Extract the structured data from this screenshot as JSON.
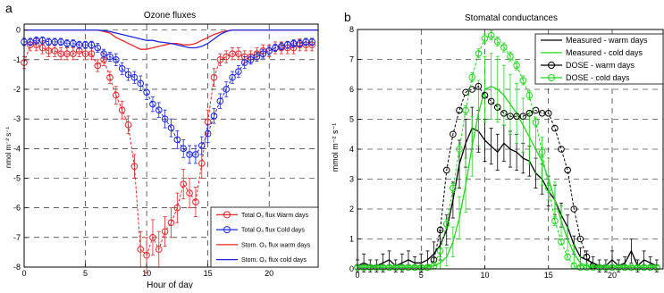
{
  "chart_data": [
    {
      "panel_letter": "a",
      "type": "line",
      "title": "Ozone fluxes",
      "xlabel": "Hour of day",
      "ylabel": "nmol m⁻² s⁻¹",
      "xlim": [
        0,
        24
      ],
      "ylim": [
        -8,
        0.2
      ],
      "xticks": [
        0,
        5,
        10,
        15,
        20
      ],
      "yticks": [
        0,
        -1,
        -2,
        -3,
        -4,
        -5,
        -6,
        -7,
        -8
      ],
      "grid": true,
      "legend_position": "bottom-right",
      "series": [
        {
          "name": "Total O₃ flux Warm days",
          "color": "#e8262b",
          "marker": "circle",
          "x": [
            0,
            0.5,
            1,
            1.5,
            2,
            2.5,
            3,
            3.5,
            4,
            4.5,
            5,
            5.5,
            6,
            6.5,
            7,
            7.5,
            8,
            8.5,
            9,
            9.5,
            10,
            10.5,
            11,
            11.5,
            12,
            12.5,
            13,
            13.5,
            14,
            14.5,
            15,
            15.5,
            16,
            16.5,
            17,
            17.5,
            18,
            18.5,
            19,
            19.5,
            20,
            20.5,
            21,
            21.5,
            22,
            22.5,
            23,
            23.5
          ],
          "y": [
            -1.1,
            -0.5,
            -0.5,
            -0.6,
            -0.7,
            -0.7,
            -0.8,
            -0.8,
            -0.8,
            -0.7,
            -0.8,
            -0.8,
            -1.2,
            -1.0,
            -1.6,
            -2.2,
            -2.7,
            -3.2,
            -4.6,
            -7.4,
            -7.6,
            -7.0,
            -7.4,
            -6.8,
            -6.5,
            -6.0,
            -5.2,
            -5.5,
            -5.8,
            -4.5,
            -3.1,
            -1.6,
            -1.0,
            -0.9,
            -0.8,
            -0.8,
            -0.9,
            -0.9,
            -0.8,
            -0.7,
            -0.7,
            -0.6,
            -0.6,
            -0.6,
            -0.6,
            -0.5,
            -0.5,
            -0.5
          ],
          "err": [
            0.2,
            0.2,
            0.2,
            0.2,
            0.2,
            0.2,
            0.2,
            0.2,
            0.2,
            0.2,
            0.2,
            0.2,
            0.2,
            0.2,
            0.2,
            0.3,
            0.3,
            0.3,
            0.4,
            0.6,
            0.6,
            0.6,
            0.6,
            0.5,
            0.5,
            0.5,
            0.5,
            0.5,
            0.5,
            0.5,
            0.4,
            0.3,
            0.2,
            0.2,
            0.2,
            0.2,
            0.2,
            0.2,
            0.2,
            0.2,
            0.2,
            0.2,
            0.2,
            0.2,
            0.2,
            0.2,
            0.2,
            0.2
          ]
        },
        {
          "name": "Total O₃ flux Cold days",
          "color": "#1a26e0",
          "marker": "circle",
          "x": [
            0,
            0.5,
            1,
            1.5,
            2,
            2.5,
            3,
            3.5,
            4,
            4.5,
            5,
            5.5,
            6,
            6.5,
            7,
            7.5,
            8,
            8.5,
            9,
            9.5,
            10,
            10.5,
            11,
            11.5,
            12,
            12.5,
            13,
            13.5,
            14,
            14.5,
            15,
            15.5,
            16,
            16.5,
            17,
            17.5,
            18,
            18.5,
            19,
            19.5,
            20,
            20.5,
            21,
            21.5,
            22,
            22.5,
            23,
            23.5
          ],
          "y": [
            -0.4,
            -0.4,
            -0.35,
            -0.35,
            -0.4,
            -0.4,
            -0.4,
            -0.45,
            -0.45,
            -0.5,
            -0.5,
            -0.5,
            -0.6,
            -0.8,
            -0.9,
            -1.0,
            -1.3,
            -1.5,
            -1.6,
            -1.8,
            -2.1,
            -2.5,
            -2.7,
            -3.0,
            -3.3,
            -3.7,
            -4.0,
            -4.2,
            -4.2,
            -3.9,
            -3.5,
            -2.9,
            -2.4,
            -2.0,
            -1.6,
            -1.4,
            -1.1,
            -1.0,
            -0.9,
            -0.8,
            -0.7,
            -0.6,
            -0.55,
            -0.5,
            -0.45,
            -0.45,
            -0.4,
            -0.4
          ],
          "err": [
            0.12,
            0.12,
            0.12,
            0.12,
            0.12,
            0.12,
            0.12,
            0.12,
            0.12,
            0.12,
            0.12,
            0.12,
            0.15,
            0.15,
            0.15,
            0.2,
            0.2,
            0.2,
            0.2,
            0.25,
            0.25,
            0.25,
            0.25,
            0.3,
            0.3,
            0.3,
            0.3,
            0.3,
            0.3,
            0.3,
            0.3,
            0.25,
            0.25,
            0.25,
            0.2,
            0.2,
            0.2,
            0.15,
            0.15,
            0.15,
            0.15,
            0.12,
            0.12,
            0.12,
            0.12,
            0.12,
            0.12,
            0.12
          ]
        },
        {
          "name": "Stom. O₃ flux warm days",
          "color": "#e8262b",
          "marker": "none",
          "x": [
            0,
            1,
            2,
            3,
            4,
            5,
            6,
            6.5,
            7,
            7.5,
            8,
            8.5,
            9,
            9.5,
            10,
            10.5,
            11,
            11.5,
            12,
            12.5,
            13,
            13.5,
            14,
            14.5,
            15,
            15.5,
            16,
            16.5,
            17,
            18,
            19,
            20,
            21,
            22,
            23,
            24
          ],
          "y": [
            0,
            0,
            0,
            0,
            0,
            0,
            0,
            -0.05,
            -0.1,
            -0.25,
            -0.35,
            -0.45,
            -0.55,
            -0.65,
            -0.65,
            -0.6,
            -0.55,
            -0.5,
            -0.45,
            -0.45,
            -0.5,
            -0.5,
            -0.45,
            -0.35,
            -0.25,
            -0.15,
            -0.08,
            -0.03,
            0,
            0,
            0,
            0,
            0,
            0,
            0,
            0
          ]
        },
        {
          "name": "Stom. O₃ flux cold days",
          "color": "#1a26e0",
          "marker": "none",
          "x": [
            0,
            1,
            2,
            3,
            4,
            5,
            6,
            6.5,
            7,
            7.5,
            8,
            8.5,
            9,
            9.5,
            10,
            10.5,
            11,
            11.5,
            12,
            12.5,
            13,
            13.5,
            14,
            14.5,
            15,
            15.5,
            16,
            16.5,
            17,
            18,
            19,
            20,
            21,
            22,
            23,
            24
          ],
          "y": [
            0,
            0,
            0,
            0,
            0,
            0,
            0,
            -0.02,
            -0.05,
            -0.1,
            -0.15,
            -0.2,
            -0.25,
            -0.3,
            -0.35,
            -0.35,
            -0.4,
            -0.42,
            -0.45,
            -0.5,
            -0.55,
            -0.6,
            -0.6,
            -0.55,
            -0.45,
            -0.3,
            -0.15,
            -0.05,
            0,
            0,
            0,
            0,
            0,
            0,
            0,
            0
          ]
        }
      ]
    },
    {
      "panel_letter": "b",
      "type": "line",
      "title": "Stomatal conductances",
      "xlabel": "",
      "ylabel": "mmol m⁻² s⁻¹",
      "xlim": [
        0,
        24
      ],
      "ylim": [
        0,
        8
      ],
      "xticks": [
        0,
        5,
        10,
        15,
        20
      ],
      "yticks": [
        0,
        1,
        2,
        3,
        4,
        5,
        6,
        7,
        8
      ],
      "grid": true,
      "legend_position": "top-right",
      "series": [
        {
          "name": "Measured - warm days",
          "color": "#000000",
          "marker": "none",
          "x": [
            0,
            0.5,
            1,
            1.5,
            2,
            2.5,
            3,
            3.5,
            4,
            4.5,
            5,
            5.5,
            6,
            6.5,
            7,
            7.5,
            8,
            8.5,
            9,
            9.5,
            10,
            10.5,
            11,
            11.5,
            12,
            12.5,
            13,
            13.5,
            14,
            14.5,
            15,
            15.5,
            16,
            16.5,
            17,
            17.5,
            18,
            18.5,
            19,
            19.5,
            20,
            20.5,
            21,
            21.5,
            22,
            22.5,
            23,
            23.5
          ],
          "y": [
            0.1,
            0.2,
            0.1,
            0.1,
            0.2,
            0.3,
            0.1,
            0.2,
            0.3,
            0.2,
            0.2,
            0.3,
            0.5,
            0.8,
            1.3,
            2.3,
            3.5,
            4.2,
            4.7,
            4.6,
            4.3,
            4.1,
            3.9,
            4.2,
            4.0,
            3.9,
            3.7,
            3.6,
            3.2,
            3.0,
            2.6,
            2.3,
            1.8,
            1.4,
            0.8,
            0.4,
            0.3,
            0.2,
            0.1,
            0.1,
            0.3,
            0.1,
            0.2,
            0.6,
            0.1,
            0.3,
            0.2,
            0.1
          ],
          "err": [
            0.2,
            0.3,
            0.2,
            0.2,
            0.3,
            0.3,
            0.2,
            0.3,
            0.3,
            0.2,
            0.3,
            0.3,
            0.4,
            0.5,
            0.5,
            0.6,
            0.8,
            0.8,
            0.7,
            0.7,
            0.7,
            0.6,
            0.6,
            0.6,
            0.6,
            0.6,
            0.5,
            0.5,
            0.5,
            0.5,
            0.5,
            0.5,
            0.4,
            0.4,
            0.3,
            0.3,
            0.3,
            0.2,
            0.2,
            0.2,
            0.3,
            0.2,
            0.2,
            0.4,
            0.2,
            0.3,
            0.2,
            0.2
          ]
        },
        {
          "name": "Measured - cold days",
          "color": "#22d81e",
          "marker": "none",
          "x": [
            0,
            0.5,
            1,
            1.5,
            2,
            2.5,
            3,
            3.5,
            4,
            4.5,
            5,
            5.5,
            6,
            6.5,
            7,
            7.5,
            8,
            8.5,
            9,
            9.5,
            10,
            10.5,
            11,
            11.5,
            12,
            12.5,
            13,
            13.5,
            14,
            14.5,
            15,
            15.5,
            16,
            16.5,
            17,
            17.5,
            18,
            18.5,
            19,
            19.5,
            20,
            20.5,
            21,
            21.5,
            22,
            22.5,
            23,
            23.5
          ],
          "y": [
            0.05,
            0.05,
            0.05,
            0.05,
            0.05,
            0.05,
            0.05,
            0.05,
            0.05,
            0.05,
            0.05,
            0.05,
            0.1,
            0.2,
            0.4,
            0.9,
            1.7,
            2.8,
            4.1,
            5.2,
            6.0,
            6.1,
            6.0,
            5.8,
            5.5,
            5.2,
            4.8,
            4.4,
            4.0,
            3.6,
            3.0,
            2.3,
            1.6,
            1.0,
            0.5,
            0.2,
            0.1,
            0.05,
            0.05,
            0.05,
            0.05,
            0.05,
            0.05,
            0.05,
            0.05,
            0.05,
            0.05,
            0.05
          ],
          "err": [
            0.05,
            0.05,
            0.05,
            0.05,
            0.05,
            0.05,
            0.05,
            0.05,
            0.05,
            0.05,
            0.05,
            0.05,
            0.1,
            0.2,
            0.3,
            0.5,
            0.7,
            0.9,
            1.0,
            1.1,
            1.1,
            1.1,
            1.1,
            1.0,
            1.0,
            1.0,
            0.9,
            0.9,
            0.8,
            0.8,
            0.7,
            0.6,
            0.5,
            0.4,
            0.3,
            0.2,
            0.1,
            0.05,
            0.05,
            0.05,
            0.05,
            0.05,
            0.05,
            0.05,
            0.05,
            0.05,
            0.05,
            0.05
          ]
        },
        {
          "name": "DOSE - warm days",
          "color": "#000000",
          "marker": "circle",
          "x": [
            0,
            0.5,
            1,
            1.5,
            2,
            2.5,
            3,
            3.5,
            4,
            4.5,
            5,
            5.5,
            6,
            6.5,
            7,
            7.5,
            8,
            8.5,
            9,
            9.5,
            10,
            10.5,
            11,
            11.5,
            12,
            12.5,
            13,
            13.5,
            14,
            14.5,
            15,
            15.5,
            16,
            16.5,
            17,
            17.5,
            18,
            18.5,
            19,
            19.5,
            20,
            20.5,
            21,
            21.5,
            22,
            22.5,
            23,
            23.5
          ],
          "y": [
            0.05,
            0.05,
            0.05,
            0.05,
            0.05,
            0.05,
            0.05,
            0.05,
            0.05,
            0.05,
            0.05,
            0.05,
            0.3,
            1.3,
            3.3,
            4.5,
            5.3,
            5.9,
            6.0,
            6.1,
            5.8,
            5.6,
            5.4,
            5.2,
            5.1,
            5.1,
            5.1,
            5.2,
            5.3,
            5.2,
            5.2,
            4.7,
            4.0,
            3.3,
            2.0,
            1.0,
            0.4,
            0.1,
            0.05,
            0.05,
            0.05,
            0.05,
            0.05,
            0.05,
            0.05,
            0.05,
            0.05,
            0.05
          ]
        },
        {
          "name": "DOSE - cold days",
          "color": "#22d81e",
          "marker": "circle",
          "x": [
            0,
            0.5,
            1,
            1.5,
            2,
            2.5,
            3,
            3.5,
            4,
            4.5,
            5,
            5.5,
            6,
            6.5,
            7,
            7.5,
            8,
            8.5,
            9,
            9.5,
            10,
            10.5,
            11,
            11.5,
            12,
            12.5,
            13,
            13.5,
            14,
            14.5,
            15,
            15.5,
            16,
            16.5,
            17,
            17.5,
            18,
            18.5,
            19,
            19.5,
            20,
            20.5,
            21,
            21.5,
            22,
            22.5,
            23,
            23.5
          ],
          "y": [
            0.05,
            0.05,
            0.05,
            0.05,
            0.05,
            0.05,
            0.05,
            0.05,
            0.05,
            0.05,
            0.05,
            0.05,
            0.1,
            0.6,
            1.5,
            2.7,
            4.0,
            5.3,
            6.4,
            7.2,
            7.7,
            7.8,
            7.6,
            7.4,
            7.1,
            6.8,
            6.3,
            5.8,
            4.9,
            3.9,
            2.7,
            1.6,
            0.9,
            0.4,
            0.1,
            0.05,
            0.05,
            0.05,
            0.05,
            0.05,
            0.05,
            0.05,
            0.05,
            0.05,
            0.05,
            0.05,
            0.05,
            0.05
          ],
          "err": [
            0.05,
            0.05,
            0.05,
            0.05,
            0.05,
            0.05,
            0.05,
            0.05,
            0.05,
            0.05,
            0.05,
            0.05,
            0.1,
            0.1,
            0.15,
            0.15,
            0.15,
            0.15,
            0.15,
            0.15,
            0.15,
            0.15,
            0.15,
            0.15,
            0.15,
            0.15,
            0.15,
            0.15,
            0.15,
            0.15,
            0.15,
            0.15,
            0.1,
            0.1,
            0.1,
            0.05,
            0.05,
            0.05,
            0.05,
            0.05,
            0.05,
            0.05,
            0.05,
            0.05,
            0.05,
            0.05,
            0.05,
            0.05
          ]
        }
      ]
    }
  ]
}
